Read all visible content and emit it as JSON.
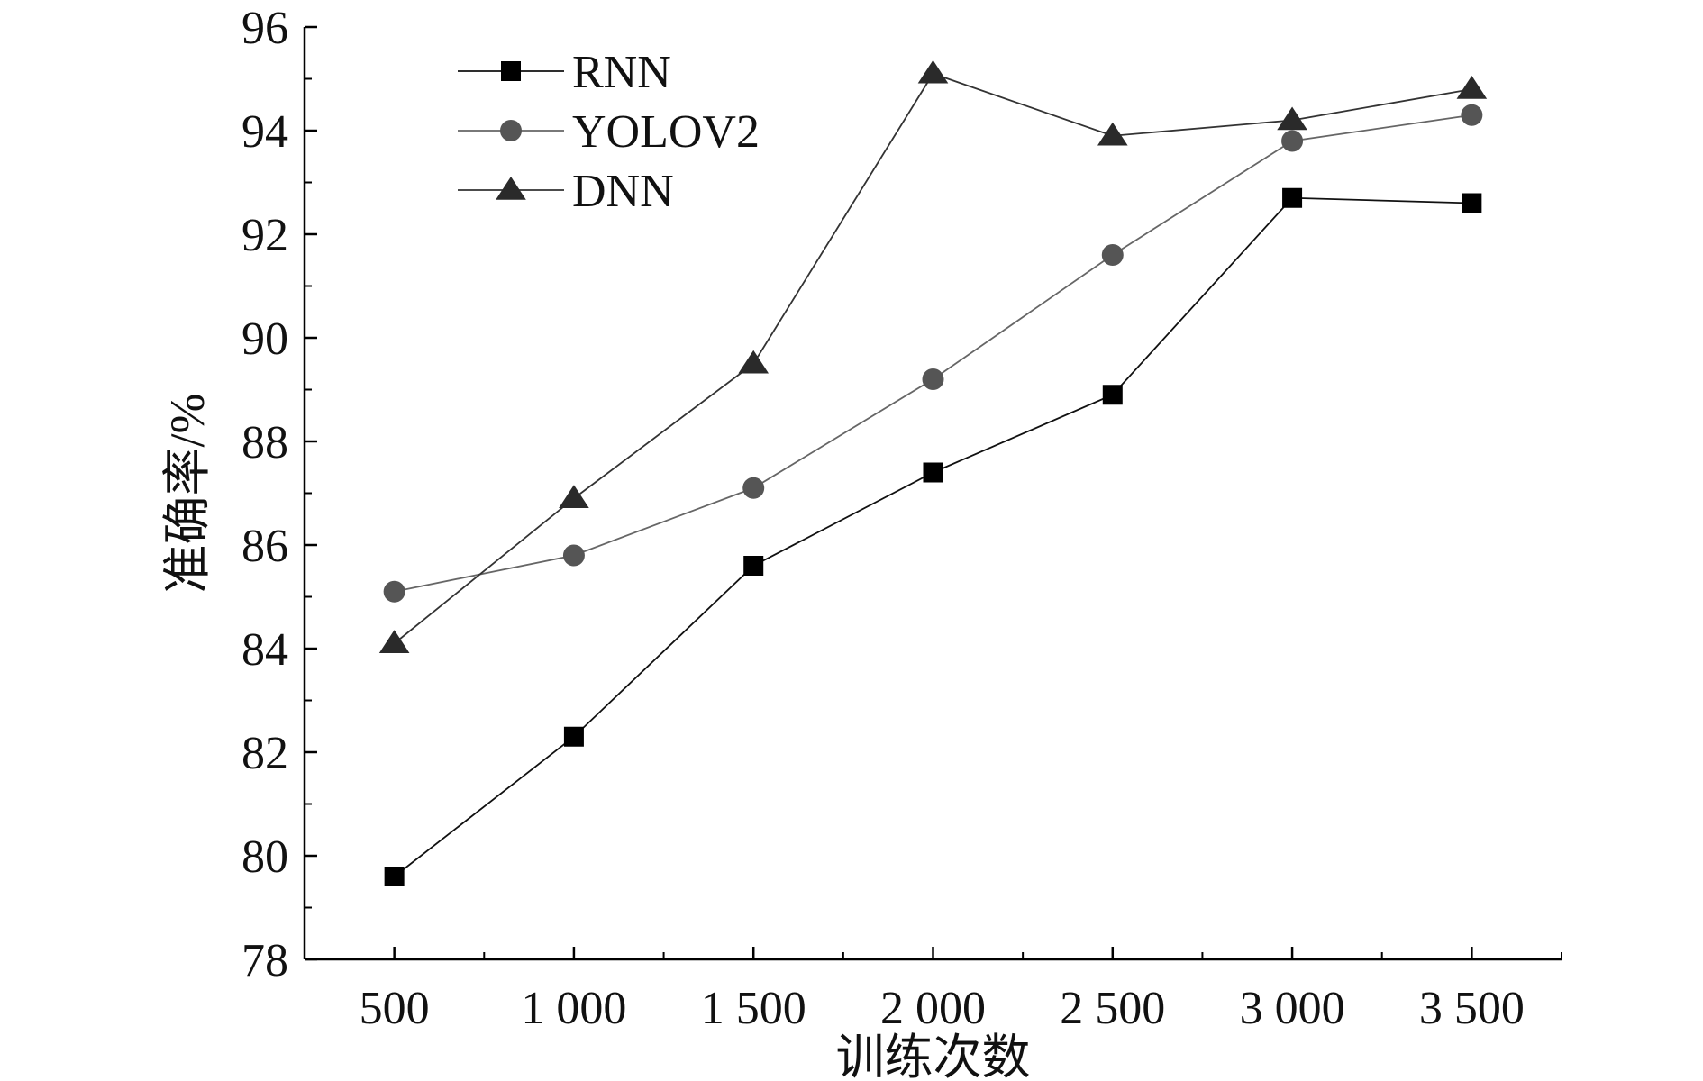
{
  "chart_data": {
    "type": "line",
    "title": "",
    "xlabel": "训练次数",
    "ylabel": "准确率/%",
    "x": [
      500,
      1000,
      1500,
      2000,
      2500,
      3000,
      3500
    ],
    "x_tick_labels": [
      "500",
      "1 000",
      "1 500",
      "2 000",
      "2 500",
      "3 000",
      "3 500"
    ],
    "xlim": [
      250,
      3750
    ],
    "ylim": [
      78,
      96
    ],
    "y_ticks": [
      78,
      80,
      82,
      84,
      86,
      88,
      90,
      92,
      94,
      96
    ],
    "y_tick_labels": [
      "78",
      "80",
      "82",
      "84",
      "86",
      "88",
      "90",
      "92",
      "94",
      "96"
    ],
    "grid": false,
    "legend_position": "top-left",
    "series": [
      {
        "name": "RNN",
        "marker": "square",
        "color": "#000000",
        "line_color": "#111111",
        "values": [
          79.6,
          82.3,
          85.6,
          87.4,
          88.9,
          92.7,
          92.6
        ]
      },
      {
        "name": "YOLOV2",
        "marker": "circle",
        "color": "#555555",
        "line_color": "#666666",
        "values": [
          85.1,
          85.8,
          87.1,
          89.2,
          91.6,
          93.8,
          94.3
        ]
      },
      {
        "name": "DNN",
        "marker": "triangle",
        "color": "#2a2a2a",
        "line_color": "#333333",
        "values": [
          84.1,
          86.9,
          89.5,
          95.1,
          93.9,
          94.2,
          94.8
        ]
      }
    ]
  }
}
